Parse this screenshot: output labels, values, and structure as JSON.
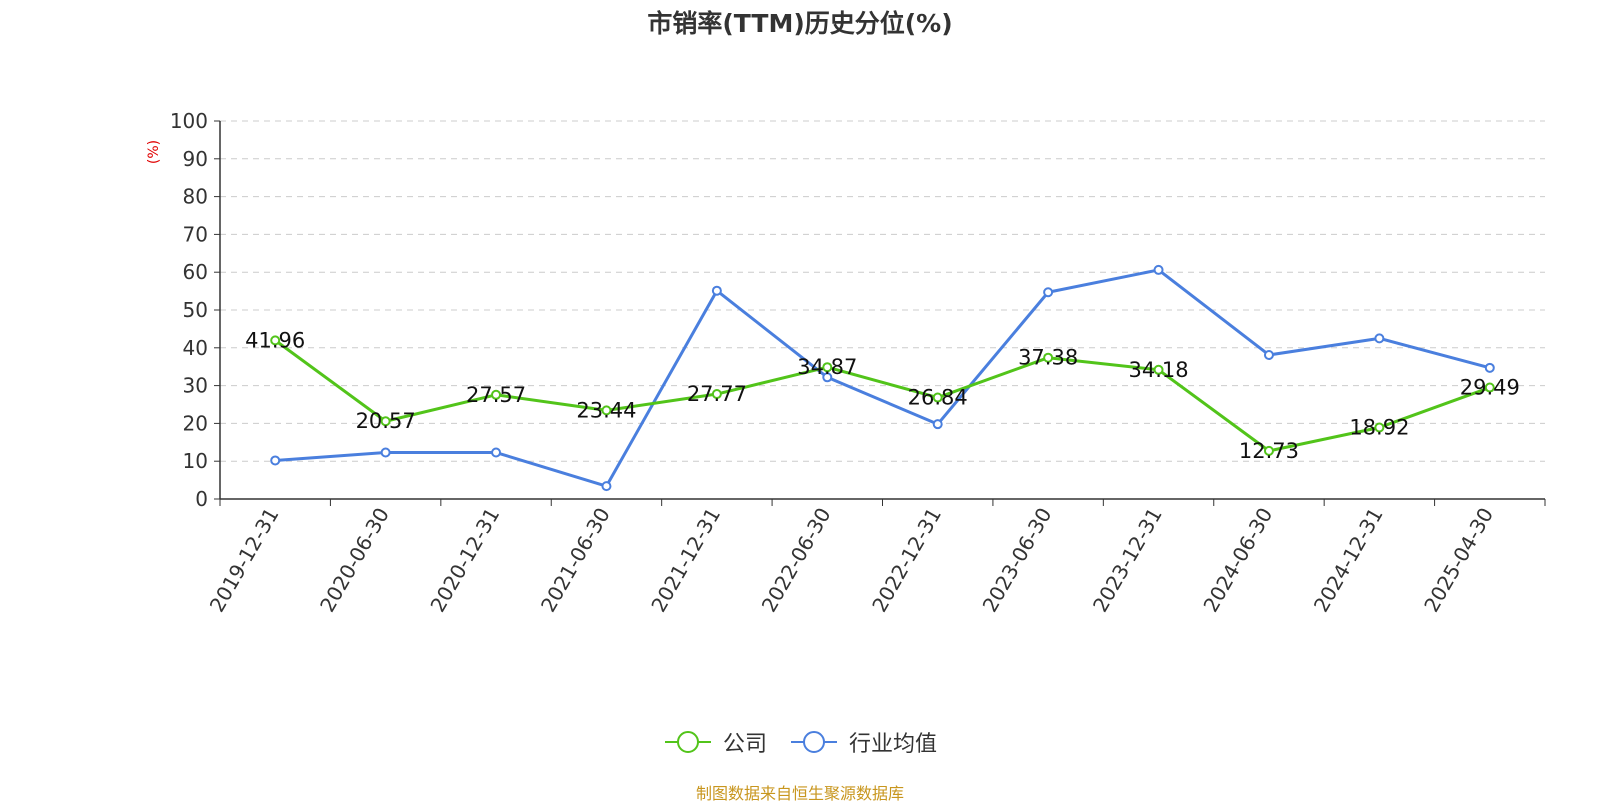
{
  "chart_data": {
    "type": "line",
    "title": "市销率(TTM)历史分位(%)",
    "ylabel": "(%)",
    "ylim": [
      0,
      100
    ],
    "yticks": [
      0,
      10,
      20,
      30,
      40,
      50,
      60,
      70,
      80,
      90,
      100
    ],
    "grid": true,
    "legend_position": "bottom-center",
    "categories": [
      "2019-12-31",
      "2020-06-30",
      "2020-12-31",
      "2021-06-30",
      "2021-12-31",
      "2022-06-30",
      "2022-12-31",
      "2023-06-30",
      "2023-12-31",
      "2024-06-30",
      "2024-12-31",
      "2025-04-30"
    ],
    "series": [
      {
        "name": "公司",
        "color": "#52c41a",
        "show_labels": true,
        "values": [
          41.96,
          20.57,
          27.57,
          23.44,
          27.77,
          34.87,
          26.84,
          37.38,
          34.18,
          12.73,
          18.92,
          29.49
        ]
      },
      {
        "name": "行业均值",
        "color": "#4a7fde",
        "show_labels": false,
        "values": [
          10.2,
          12.3,
          12.3,
          3.4,
          55.1,
          32.2,
          19.8,
          54.7,
          60.6,
          38.1,
          42.5,
          34.7
        ]
      }
    ]
  },
  "source": "制图数据来自恒生聚源数据库"
}
